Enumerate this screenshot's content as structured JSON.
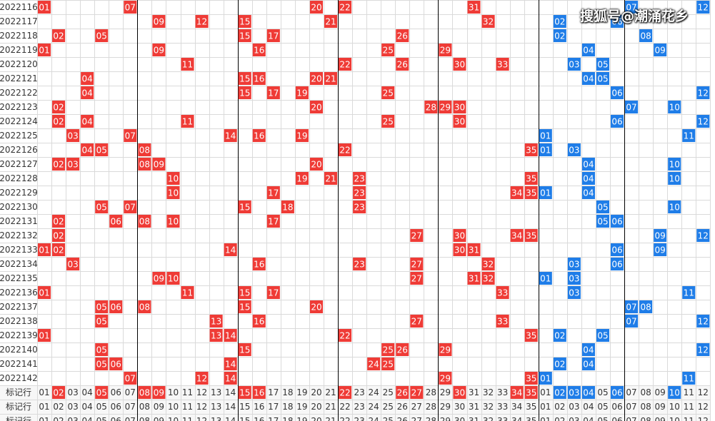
{
  "watermark": "搜狐号@潮涌花乡",
  "colors": {
    "red": "#ef3b36",
    "blue": "#1f7de8",
    "grid": "#dadada",
    "section": "#000000",
    "text": "#333333"
  },
  "chart_data": {
    "type": "table",
    "front_numbers": [
      "01",
      "02",
      "03",
      "04",
      "05",
      "06",
      "07",
      "08",
      "09",
      "10",
      "11",
      "12",
      "13",
      "14",
      "15",
      "16",
      "17",
      "18",
      "19",
      "20",
      "21",
      "22",
      "23",
      "24",
      "25",
      "26",
      "27",
      "28",
      "29",
      "30",
      "31",
      "32",
      "33",
      "34",
      "35"
    ],
    "back_numbers": [
      "01",
      "02",
      "03",
      "04",
      "05",
      "06",
      "07",
      "08",
      "09",
      "10",
      "11",
      "12"
    ],
    "draws": [
      {
        "issue": "2022116",
        "front": [
          "01",
          "07",
          "20",
          "22",
          "31"
        ],
        "back": [
          "07",
          "12"
        ]
      },
      {
        "issue": "2022117",
        "front": [
          "09",
          "12",
          "15",
          "21",
          "32"
        ],
        "back": [
          "02",
          "06"
        ]
      },
      {
        "issue": "2022118",
        "front": [
          "02",
          "05",
          "15",
          "17",
          "26"
        ],
        "back": [
          "02",
          "08"
        ]
      },
      {
        "issue": "2022119",
        "front": [
          "01",
          "09",
          "16",
          "25",
          "29"
        ],
        "back": [
          "04",
          "09"
        ]
      },
      {
        "issue": "2022120",
        "front": [
          "11",
          "22",
          "26",
          "30",
          "33"
        ],
        "back": [
          "03",
          "05"
        ]
      },
      {
        "issue": "2022121",
        "front": [
          "04",
          "15",
          "16",
          "20",
          "21"
        ],
        "back": [
          "04",
          "05"
        ]
      },
      {
        "issue": "2022122",
        "front": [
          "04",
          "15",
          "17",
          "19",
          "25"
        ],
        "back": [
          "06",
          "12"
        ]
      },
      {
        "issue": "2022123",
        "front": [
          "02",
          "20",
          "28",
          "29",
          "30"
        ],
        "back": [
          "07",
          "10"
        ]
      },
      {
        "issue": "2022124",
        "front": [
          "02",
          "04",
          "11",
          "25",
          "30"
        ],
        "back": [
          "06",
          "12"
        ]
      },
      {
        "issue": "2022125",
        "front": [
          "03",
          "07",
          "14",
          "16",
          "19"
        ],
        "back": [
          "01",
          "11"
        ]
      },
      {
        "issue": "2022126",
        "front": [
          "04",
          "05",
          "08",
          "22",
          "35"
        ],
        "back": [
          "01",
          "03"
        ]
      },
      {
        "issue": "2022127",
        "front": [
          "02",
          "03",
          "08",
          "09",
          "20"
        ],
        "back": [
          "04",
          "10"
        ]
      },
      {
        "issue": "2022128",
        "front": [
          "10",
          "19",
          "21",
          "23",
          "35"
        ],
        "back": [
          "04",
          "10"
        ]
      },
      {
        "issue": "2022129",
        "front": [
          "10",
          "17",
          "23",
          "34",
          "35"
        ],
        "back": [
          "01",
          "04"
        ]
      },
      {
        "issue": "2022130",
        "front": [
          "05",
          "07",
          "15",
          "18",
          "23"
        ],
        "back": [
          "05",
          "10"
        ]
      },
      {
        "issue": "2022131",
        "front": [
          "02",
          "06",
          "08",
          "10",
          "17"
        ],
        "back": [
          "05",
          "06"
        ]
      },
      {
        "issue": "2022132",
        "front": [
          "02",
          "27",
          "30",
          "34",
          "35"
        ],
        "back": [
          "09",
          "12"
        ]
      },
      {
        "issue": "2022133",
        "front": [
          "01",
          "02",
          "14",
          "30",
          "31"
        ],
        "back": [
          "06",
          "09"
        ]
      },
      {
        "issue": "2022134",
        "front": [
          "03",
          "16",
          "23",
          "27",
          "32"
        ],
        "back": [
          "03",
          "06"
        ]
      },
      {
        "issue": "2022135",
        "front": [
          "09",
          "10",
          "27",
          "31",
          "32"
        ],
        "back": [
          "01",
          "03"
        ]
      },
      {
        "issue": "2022136",
        "front": [
          "01",
          "11",
          "15",
          "17",
          "33"
        ],
        "back": [
          "03",
          "11"
        ]
      },
      {
        "issue": "2022137",
        "front": [
          "05",
          "06",
          "08",
          "15",
          "20"
        ],
        "back": [
          "07",
          "08"
        ]
      },
      {
        "issue": "2022138",
        "front": [
          "05",
          "13",
          "16",
          "27",
          "33"
        ],
        "back": [
          "07",
          "12"
        ]
      },
      {
        "issue": "2022139",
        "front": [
          "01",
          "13",
          "14",
          "22",
          "35"
        ],
        "back": [
          "02",
          "05"
        ]
      },
      {
        "issue": "2022140",
        "front": [
          "05",
          "15",
          "25",
          "26",
          "29"
        ],
        "back": [
          "04",
          "12"
        ]
      },
      {
        "issue": "2022141",
        "front": [
          "05",
          "06",
          "14",
          "24",
          "25"
        ],
        "back": [
          "02",
          "04"
        ]
      },
      {
        "issue": "2022142",
        "front": [
          "07",
          "12",
          "14",
          "29",
          "35"
        ],
        "back": [
          "01",
          "11"
        ]
      }
    ],
    "marker_rows": [
      {
        "label": "标记行",
        "front": [
          "02",
          "05",
          "08",
          "09",
          "15",
          "16",
          "22",
          "26",
          "27",
          "30",
          "34",
          "35"
        ],
        "back": [
          "02",
          "03",
          "04",
          "06",
          "10"
        ]
      },
      {
        "label": "标记行",
        "front": [],
        "back": []
      },
      {
        "label": "标记行",
        "front": [],
        "back": []
      }
    ]
  }
}
